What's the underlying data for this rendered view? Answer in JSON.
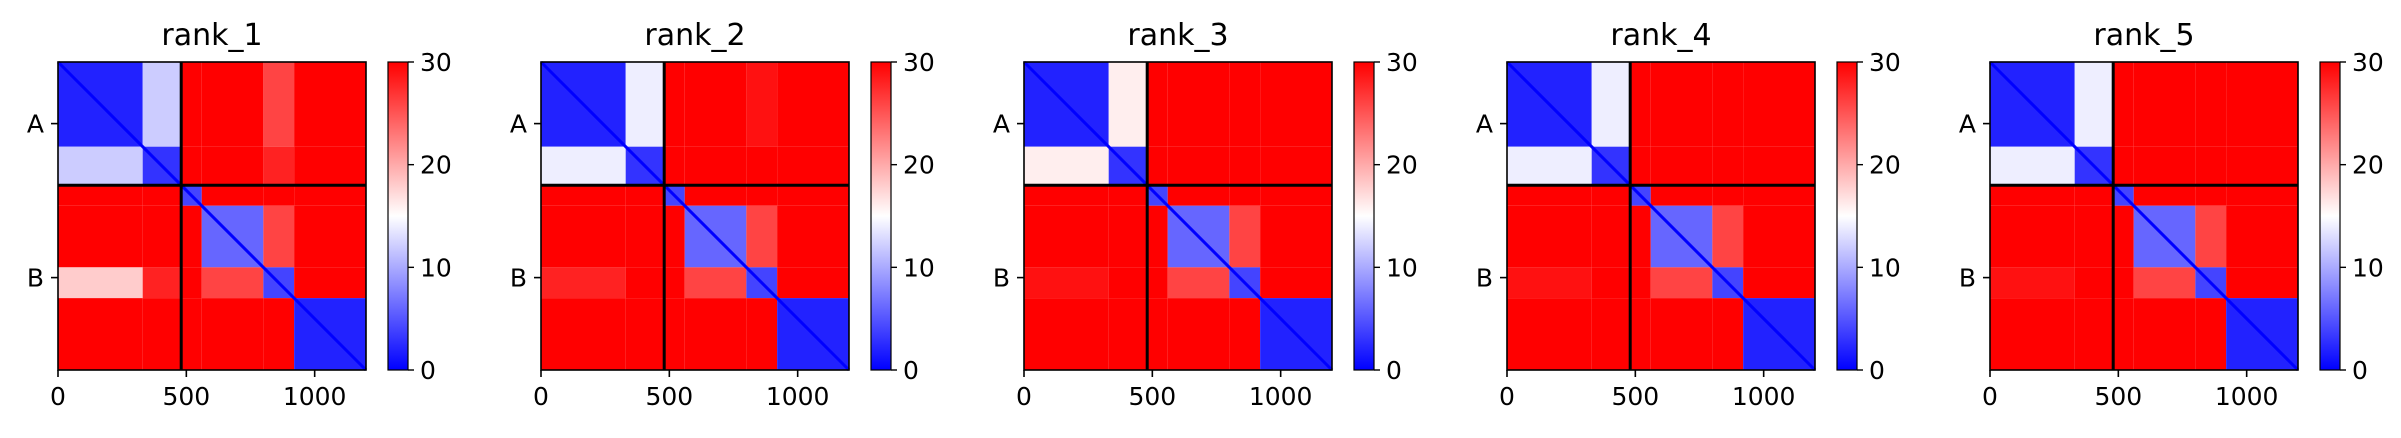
{
  "chart_data": [
    {
      "type": "heatmap",
      "title": "rank_1",
      "xlabel": "",
      "ylabel": "",
      "x_ticks": [
        0,
        500,
        1000
      ],
      "x_range": [
        0,
        1200
      ],
      "chain_labels": [
        "A",
        "B"
      ],
      "chain_boundary": 480,
      "colorbar": {
        "min": 0,
        "max": 30,
        "ticks": [
          0,
          10,
          20,
          30
        ],
        "colors": [
          "#0000ff",
          "#ffffff",
          "#ff0000"
        ]
      },
      "domains": [
        [
          0,
          330
        ],
        [
          330,
          480
        ],
        [
          480,
          560
        ],
        [
          560,
          800
        ],
        [
          800,
          920
        ],
        [
          920,
          1200
        ]
      ],
      "block_values": [
        [
          2,
          12,
          30,
          30,
          26,
          30
        ],
        [
          12,
          3,
          30,
          30,
          28,
          30
        ],
        [
          30,
          30,
          4,
          30,
          30,
          30
        ],
        [
          30,
          30,
          30,
          6,
          26,
          30
        ],
        [
          18,
          28,
          30,
          26,
          4,
          30
        ],
        [
          30,
          30,
          30,
          30,
          30,
          2
        ]
      ]
    },
    {
      "type": "heatmap",
      "title": "rank_2",
      "xlabel": "",
      "ylabel": "",
      "x_ticks": [
        0,
        500,
        1000
      ],
      "x_range": [
        0,
        1200
      ],
      "chain_labels": [
        "A",
        "B"
      ],
      "chain_boundary": 480,
      "colorbar": {
        "min": 0,
        "max": 30,
        "ticks": [
          0,
          10,
          20,
          30
        ],
        "colors": [
          "#0000ff",
          "#ffffff",
          "#ff0000"
        ]
      },
      "domains": [
        [
          0,
          330
        ],
        [
          330,
          480
        ],
        [
          480,
          560
        ],
        [
          560,
          800
        ],
        [
          800,
          920
        ],
        [
          920,
          1200
        ]
      ],
      "block_values": [
        [
          2,
          14,
          30,
          30,
          29,
          30
        ],
        [
          14,
          3,
          30,
          30,
          30,
          30
        ],
        [
          30,
          30,
          4,
          30,
          30,
          30
        ],
        [
          30,
          30,
          30,
          6,
          26,
          30
        ],
        [
          28,
          30,
          30,
          26,
          4,
          30
        ],
        [
          30,
          30,
          30,
          30,
          30,
          2
        ]
      ]
    },
    {
      "type": "heatmap",
      "title": "rank_3",
      "xlabel": "",
      "ylabel": "",
      "x_ticks": [
        0,
        500,
        1000
      ],
      "x_range": [
        0,
        1200
      ],
      "chain_labels": [
        "A",
        "B"
      ],
      "chain_boundary": 480,
      "colorbar": {
        "min": 0,
        "max": 30,
        "ticks": [
          0,
          10,
          20,
          30
        ],
        "colors": [
          "#0000ff",
          "#ffffff",
          "#ff0000"
        ]
      },
      "domains": [
        [
          0,
          330
        ],
        [
          330,
          480
        ],
        [
          480,
          560
        ],
        [
          560,
          800
        ],
        [
          800,
          920
        ],
        [
          920,
          1200
        ]
      ],
      "block_values": [
        [
          2,
          16,
          30,
          30,
          30,
          30
        ],
        [
          16,
          3,
          30,
          30,
          30,
          30
        ],
        [
          30,
          30,
          4,
          30,
          30,
          30
        ],
        [
          30,
          30,
          30,
          6,
          26,
          30
        ],
        [
          29,
          30,
          30,
          26,
          4,
          30
        ],
        [
          30,
          30,
          30,
          30,
          30,
          2
        ]
      ]
    },
    {
      "type": "heatmap",
      "title": "rank_4",
      "xlabel": "",
      "ylabel": "",
      "x_ticks": [
        0,
        500,
        1000
      ],
      "x_range": [
        0,
        1200
      ],
      "chain_labels": [
        "A",
        "B"
      ],
      "chain_boundary": 480,
      "colorbar": {
        "min": 0,
        "max": 30,
        "ticks": [
          0,
          10,
          20,
          30
        ],
        "colors": [
          "#0000ff",
          "#ffffff",
          "#ff0000"
        ]
      },
      "domains": [
        [
          0,
          330
        ],
        [
          330,
          480
        ],
        [
          480,
          560
        ],
        [
          560,
          800
        ],
        [
          800,
          920
        ],
        [
          920,
          1200
        ]
      ],
      "block_values": [
        [
          2,
          14,
          30,
          30,
          30,
          30
        ],
        [
          14,
          3,
          30,
          30,
          30,
          30
        ],
        [
          30,
          30,
          4,
          30,
          30,
          30
        ],
        [
          30,
          30,
          30,
          6,
          26,
          30
        ],
        [
          29,
          30,
          30,
          26,
          4,
          30
        ],
        [
          30,
          30,
          30,
          30,
          30,
          2
        ]
      ]
    },
    {
      "type": "heatmap",
      "title": "rank_5",
      "xlabel": "",
      "ylabel": "",
      "x_ticks": [
        0,
        500,
        1000
      ],
      "x_range": [
        0,
        1200
      ],
      "chain_labels": [
        "A",
        "B"
      ],
      "chain_boundary": 480,
      "colorbar": {
        "min": 0,
        "max": 30,
        "ticks": [
          0,
          10,
          20,
          30
        ],
        "colors": [
          "#0000ff",
          "#ffffff",
          "#ff0000"
        ]
      },
      "domains": [
        [
          0,
          330
        ],
        [
          330,
          480
        ],
        [
          480,
          560
        ],
        [
          560,
          800
        ],
        [
          800,
          920
        ],
        [
          920,
          1200
        ]
      ],
      "block_values": [
        [
          2,
          14,
          30,
          30,
          30,
          30
        ],
        [
          14,
          3,
          30,
          30,
          30,
          30
        ],
        [
          30,
          30,
          4,
          30,
          30,
          30
        ],
        [
          30,
          30,
          30,
          6,
          26,
          30
        ],
        [
          29,
          30,
          30,
          26,
          4,
          30
        ],
        [
          30,
          30,
          30,
          30,
          30,
          2
        ]
      ]
    }
  ]
}
